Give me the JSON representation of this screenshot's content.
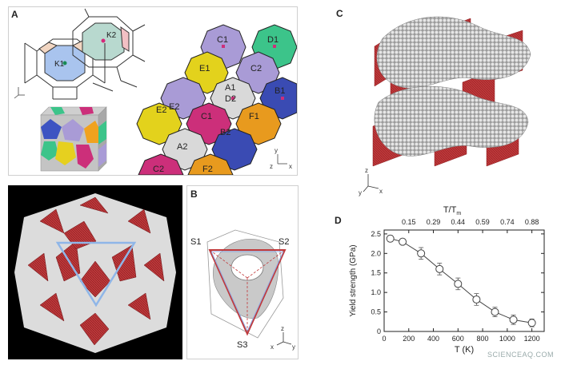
{
  "panel_a": {
    "label": "A",
    "cell_labels": [
      "K1",
      "K2",
      "C1",
      "D1",
      "E1",
      "C2",
      "A1",
      "D2",
      "B1",
      "E2",
      "C1",
      "B2",
      "F1",
      "A2",
      "E2",
      "C2",
      "F2"
    ],
    "axis_z": "z",
    "axis_x": "x",
    "axis_y": "y"
  },
  "panel_b": {
    "label": "B",
    "vertex_labels": [
      "S1",
      "S2",
      "S3"
    ],
    "axis_labels": [
      "z",
      "x",
      "y"
    ]
  },
  "panel_c": {
    "label": "C",
    "axis_labels": [
      "z",
      "x",
      "y"
    ]
  },
  "panel_d": {
    "label": "D",
    "top_axis_label": "T/T",
    "top_axis_subscript": "m",
    "top_ticks": [
      "0.15",
      "0.29",
      "0.44",
      "0.59",
      "0.74",
      "0.88"
    ],
    "watermark": "SCIENCEAQ.COM"
  },
  "colors": {
    "red": "#c0393b",
    "blue": "#5a9bd5",
    "gray": "#bfbfbf",
    "magenta": "#cc2f7a",
    "yellow": "#e3d21c",
    "lavender": "#a99bd6",
    "green": "#3cc48a",
    "navy": "#3a4bb3",
    "orange": "#e89a1e"
  },
  "chart_data": {
    "type": "line",
    "xlabel": "T (K)",
    "ylabel": "Yield strength (GPa)",
    "xlim": [
      0,
      1300
    ],
    "ylim": [
      0,
      2.6
    ],
    "x_ticks": [
      "0",
      "200",
      "400",
      "600",
      "800",
      "1000",
      "1200"
    ],
    "y_ticks": [
      "0",
      "0.5",
      "1.0",
      "1.5",
      "2.0",
      "2.5"
    ],
    "series": [
      {
        "x": [
          50,
          150,
          300,
          450,
          600,
          750,
          900,
          1050,
          1200
        ],
        "values": [
          2.38,
          2.3,
          2.0,
          1.6,
          1.22,
          0.82,
          0.5,
          0.3,
          0.22
        ],
        "error": [
          0.08,
          0.07,
          0.15,
          0.15,
          0.15,
          0.15,
          0.12,
          0.12,
          0.1
        ]
      }
    ]
  }
}
